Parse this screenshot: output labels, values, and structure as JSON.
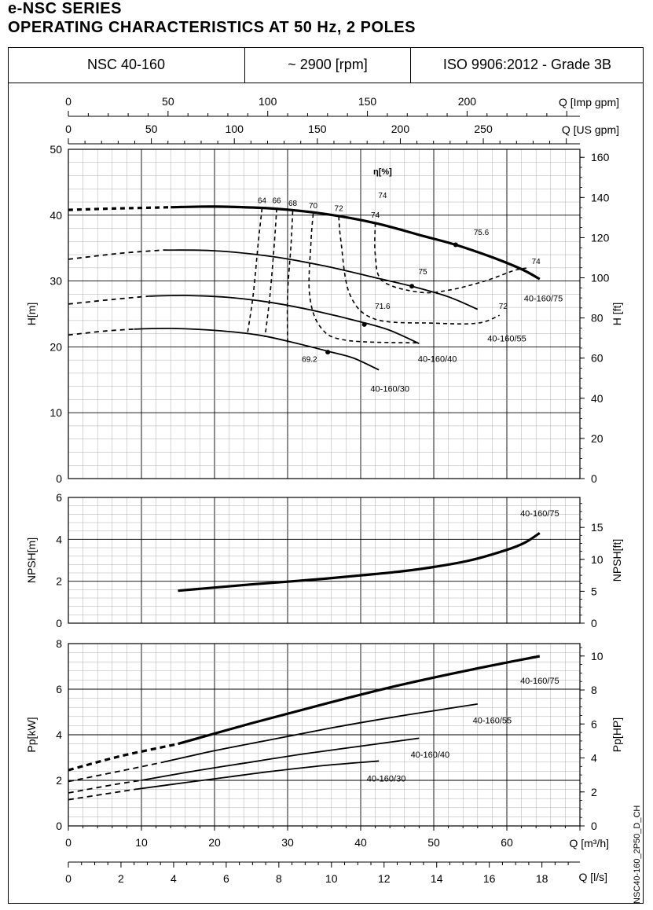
{
  "header": {
    "series": "e-NSC SERIES",
    "title": "OPERATING CHARACTERISTICS AT 50 Hz, 2 POLES"
  },
  "info": {
    "model": "NSC 40-160",
    "speed": "~ 2900 [rpm]",
    "standard": "ISO 9906:2012 - Grade 3B"
  },
  "doc_code": "NSC40-160_2P50_D_CH",
  "chart_data": [
    {
      "type": "line",
      "title": "",
      "xlabel": "Q [m³/h]",
      "ylabel": "H[m]",
      "ylabel_right": "H [ft]",
      "xlim": [
        0,
        70
      ],
      "ylim": [
        0,
        50
      ],
      "y2lim": [
        0,
        164
      ],
      "top_axes": [
        {
          "label": "Q [Imp gpm]",
          "ticks": [
            "0",
            "50",
            "100",
            "150",
            "200"
          ],
          "values": [
            0,
            50,
            100,
            150,
            200
          ],
          "max": 256.6
        },
        {
          "label": "Q [US gpm]",
          "ticks": [
            "0",
            "50",
            "100",
            "150",
            "200",
            "250"
          ],
          "values": [
            0,
            50,
            100,
            150,
            200,
            250
          ],
          "max": 308.2
        }
      ],
      "yticks": [
        "0",
        "10",
        "20",
        "30",
        "40",
        "50"
      ],
      "y2ticks": [
        "0",
        "20",
        "40",
        "60",
        "80",
        "100",
        "120",
        "140",
        "160"
      ],
      "efficiency_label": "η[%]",
      "series": [
        {
          "name": "40-160/75",
          "dashed": [
            [
              0,
              40.8
            ],
            [
              6,
              41.0
            ],
            [
              14,
              41.2
            ]
          ],
          "solid": [
            [
              14,
              41.2
            ],
            [
              20,
              41.3
            ],
            [
              28,
              41.0
            ],
            [
              35,
              40.2
            ],
            [
              42,
              38.8
            ],
            [
              48,
              37.0
            ],
            [
              53,
              35.5
            ],
            [
              58,
              33.6
            ],
            [
              62,
              31.8
            ],
            [
              64.5,
              30.3
            ]
          ],
          "bold": true
        },
        {
          "name": "40-160/55",
          "dashed": [
            [
              0,
              33.3
            ],
            [
              7,
              34.2
            ],
            [
              13,
              34.7
            ]
          ],
          "solid": [
            [
              13,
              34.7
            ],
            [
              20,
              34.6
            ],
            [
              28,
              33.7
            ],
            [
              35,
              32.3
            ],
            [
              42,
              30.5
            ],
            [
              47,
              29.2
            ],
            [
              52,
              27.6
            ],
            [
              56,
              25.7
            ]
          ],
          "bold": false
        },
        {
          "name": "40-160/40",
          "dashed": [
            [
              0,
              26.5
            ],
            [
              6,
              27.2
            ],
            [
              11,
              27.7
            ]
          ],
          "solid": [
            [
              11,
              27.7
            ],
            [
              16,
              27.8
            ],
            [
              22,
              27.5
            ],
            [
              28,
              26.7
            ],
            [
              34,
              25.4
            ],
            [
              40,
              23.8
            ],
            [
              44,
              22.5
            ],
            [
              48,
              20.5
            ]
          ],
          "bold": false
        },
        {
          "name": "40-160/30",
          "dashed": [
            [
              0,
              21.8
            ],
            [
              5,
              22.4
            ],
            [
              9,
              22.7
            ]
          ],
          "solid": [
            [
              9,
              22.7
            ],
            [
              14,
              22.8
            ],
            [
              20,
              22.5
            ],
            [
              26,
              21.8
            ],
            [
              31,
              20.6
            ],
            [
              36,
              19.2
            ],
            [
              39,
              18.3
            ],
            [
              42.5,
              16.5
            ]
          ],
          "bold": false
        }
      ],
      "efficiency_curves": [
        {
          "label": "64",
          "points": [
            [
              26.5,
              41.0
            ],
            [
              26.0,
              36
            ],
            [
              25.3,
              28
            ],
            [
              24.5,
              22
            ]
          ]
        },
        {
          "label": "66",
          "points": [
            [
              28.5,
              41.0
            ],
            [
              28.2,
              36
            ],
            [
              27.6,
              28
            ],
            [
              26.9,
              21.5
            ]
          ]
        },
        {
          "label": "68",
          "points": [
            [
              30.7,
              40.6
            ],
            [
              30.5,
              36
            ],
            [
              30.0,
              28
            ],
            [
              30.0,
              20.6
            ]
          ]
        },
        {
          "label": "70",
          "points": [
            [
              33.5,
              40.2
            ],
            [
              33.2,
              36
            ],
            [
              33.0,
              28
            ],
            [
              34.5,
              23
            ],
            [
              38,
              21.0
            ],
            [
              48,
              20.6
            ]
          ]
        },
        {
          "label": "72",
          "points": [
            [
              37.0,
              39.8
            ],
            [
              37.3,
              36
            ],
            [
              38.5,
              28
            ],
            [
              42,
              24.2
            ],
            [
              50,
              23.6
            ],
            [
              56,
              23.6
            ],
            [
              59,
              24.8
            ]
          ]
        },
        {
          "label": "74",
          "points": [
            [
              42.0,
              38.8
            ],
            [
              42.0,
              34
            ],
            [
              43,
              30
            ],
            [
              48,
              28.3
            ],
            [
              52,
              28.6
            ],
            [
              57,
              30.0
            ],
            [
              61,
              31.6
            ],
            [
              63,
              32.0
            ]
          ]
        }
      ],
      "efficiency_points": [
        {
          "label": "75.6",
          "point": [
            53,
            35.5
          ]
        },
        {
          "label": "75",
          "point": [
            47,
            29.2
          ]
        },
        {
          "label": "71.6",
          "point": [
            40.5,
            23.4
          ]
        },
        {
          "label": "69.2",
          "point": [
            35.5,
            19.2
          ]
        }
      ]
    },
    {
      "type": "line",
      "xlabel": "Q [m³/h]",
      "ylabel": "NPSH[m]",
      "ylabel_right": "NPSH[ft]",
      "xlim": [
        0,
        70
      ],
      "ylim": [
        0,
        6
      ],
      "y2lim": [
        0,
        19.7
      ],
      "yticks": [
        "0",
        "2",
        "4",
        "6"
      ],
      "y2ticks": [
        "0",
        "5",
        "10",
        "15"
      ],
      "series": [
        {
          "name": "40-160/75",
          "solid": [
            [
              15,
              1.55
            ],
            [
              20,
              1.7
            ],
            [
              25,
              1.85
            ],
            [
              30,
              1.98
            ],
            [
              35,
              2.12
            ],
            [
              40,
              2.28
            ],
            [
              45,
              2.45
            ],
            [
              50,
              2.68
            ],
            [
              55,
              3.0
            ],
            [
              60,
              3.5
            ],
            [
              62.5,
              3.85
            ],
            [
              64.5,
              4.3
            ]
          ]
        }
      ]
    },
    {
      "type": "line",
      "xlabel": "Q [m³/h]",
      "ylabel": "Pp[kW]",
      "ylabel_right": "Pp[HP]",
      "xlim": [
        0,
        70
      ],
      "ylim": [
        0,
        8
      ],
      "y2lim": [
        0,
        10.73
      ],
      "yticks": [
        "0",
        "2",
        "4",
        "6",
        "8"
      ],
      "y2ticks": [
        "0",
        "2",
        "4",
        "6",
        "8",
        "10"
      ],
      "xticks": [
        "0",
        "10",
        "20",
        "30",
        "40",
        "50",
        "60"
      ],
      "bottom_axis": {
        "label": "Q [l/s]",
        "ticks": [
          "0",
          "2",
          "4",
          "6",
          "8",
          "10",
          "12",
          "14",
          "16",
          "18"
        ],
        "values": [
          0,
          2,
          4,
          6,
          8,
          10,
          12,
          14,
          16,
          18
        ]
      },
      "series": [
        {
          "name": "40-160/75",
          "bold": true,
          "dashed": [
            [
              0,
              2.45
            ],
            [
              7,
              3.05
            ],
            [
              15,
              3.6
            ]
          ],
          "solid": [
            [
              15,
              3.6
            ],
            [
              25,
              4.5
            ],
            [
              35,
              5.35
            ],
            [
              45,
              6.15
            ],
            [
              55,
              6.85
            ],
            [
              64.5,
              7.45
            ]
          ]
        },
        {
          "name": "40-160/55",
          "dashed": [
            [
              0,
              1.95
            ],
            [
              7,
              2.4
            ],
            [
              13,
              2.8
            ]
          ],
          "solid": [
            [
              13,
              2.8
            ],
            [
              20,
              3.3
            ],
            [
              28,
              3.8
            ],
            [
              36,
              4.3
            ],
            [
              44,
              4.75
            ],
            [
              50,
              5.05
            ],
            [
              56,
              5.35
            ]
          ]
        },
        {
          "name": "40-160/40",
          "dashed": [
            [
              0,
              1.45
            ],
            [
              6,
              1.8
            ],
            [
              10,
              2.0
            ]
          ],
          "solid": [
            [
              10,
              2.0
            ],
            [
              18,
              2.45
            ],
            [
              25,
              2.8
            ],
            [
              32,
              3.15
            ],
            [
              40,
              3.5
            ],
            [
              48,
              3.85
            ]
          ]
        },
        {
          "name": "40-160/30",
          "dashed": [
            [
              0,
              1.15
            ],
            [
              5,
              1.4
            ],
            [
              9,
              1.6
            ]
          ],
          "solid": [
            [
              9,
              1.6
            ],
            [
              16,
              1.9
            ],
            [
              22,
              2.15
            ],
            [
              28,
              2.4
            ],
            [
              35,
              2.65
            ],
            [
              42.5,
              2.85
            ]
          ]
        }
      ]
    }
  ]
}
